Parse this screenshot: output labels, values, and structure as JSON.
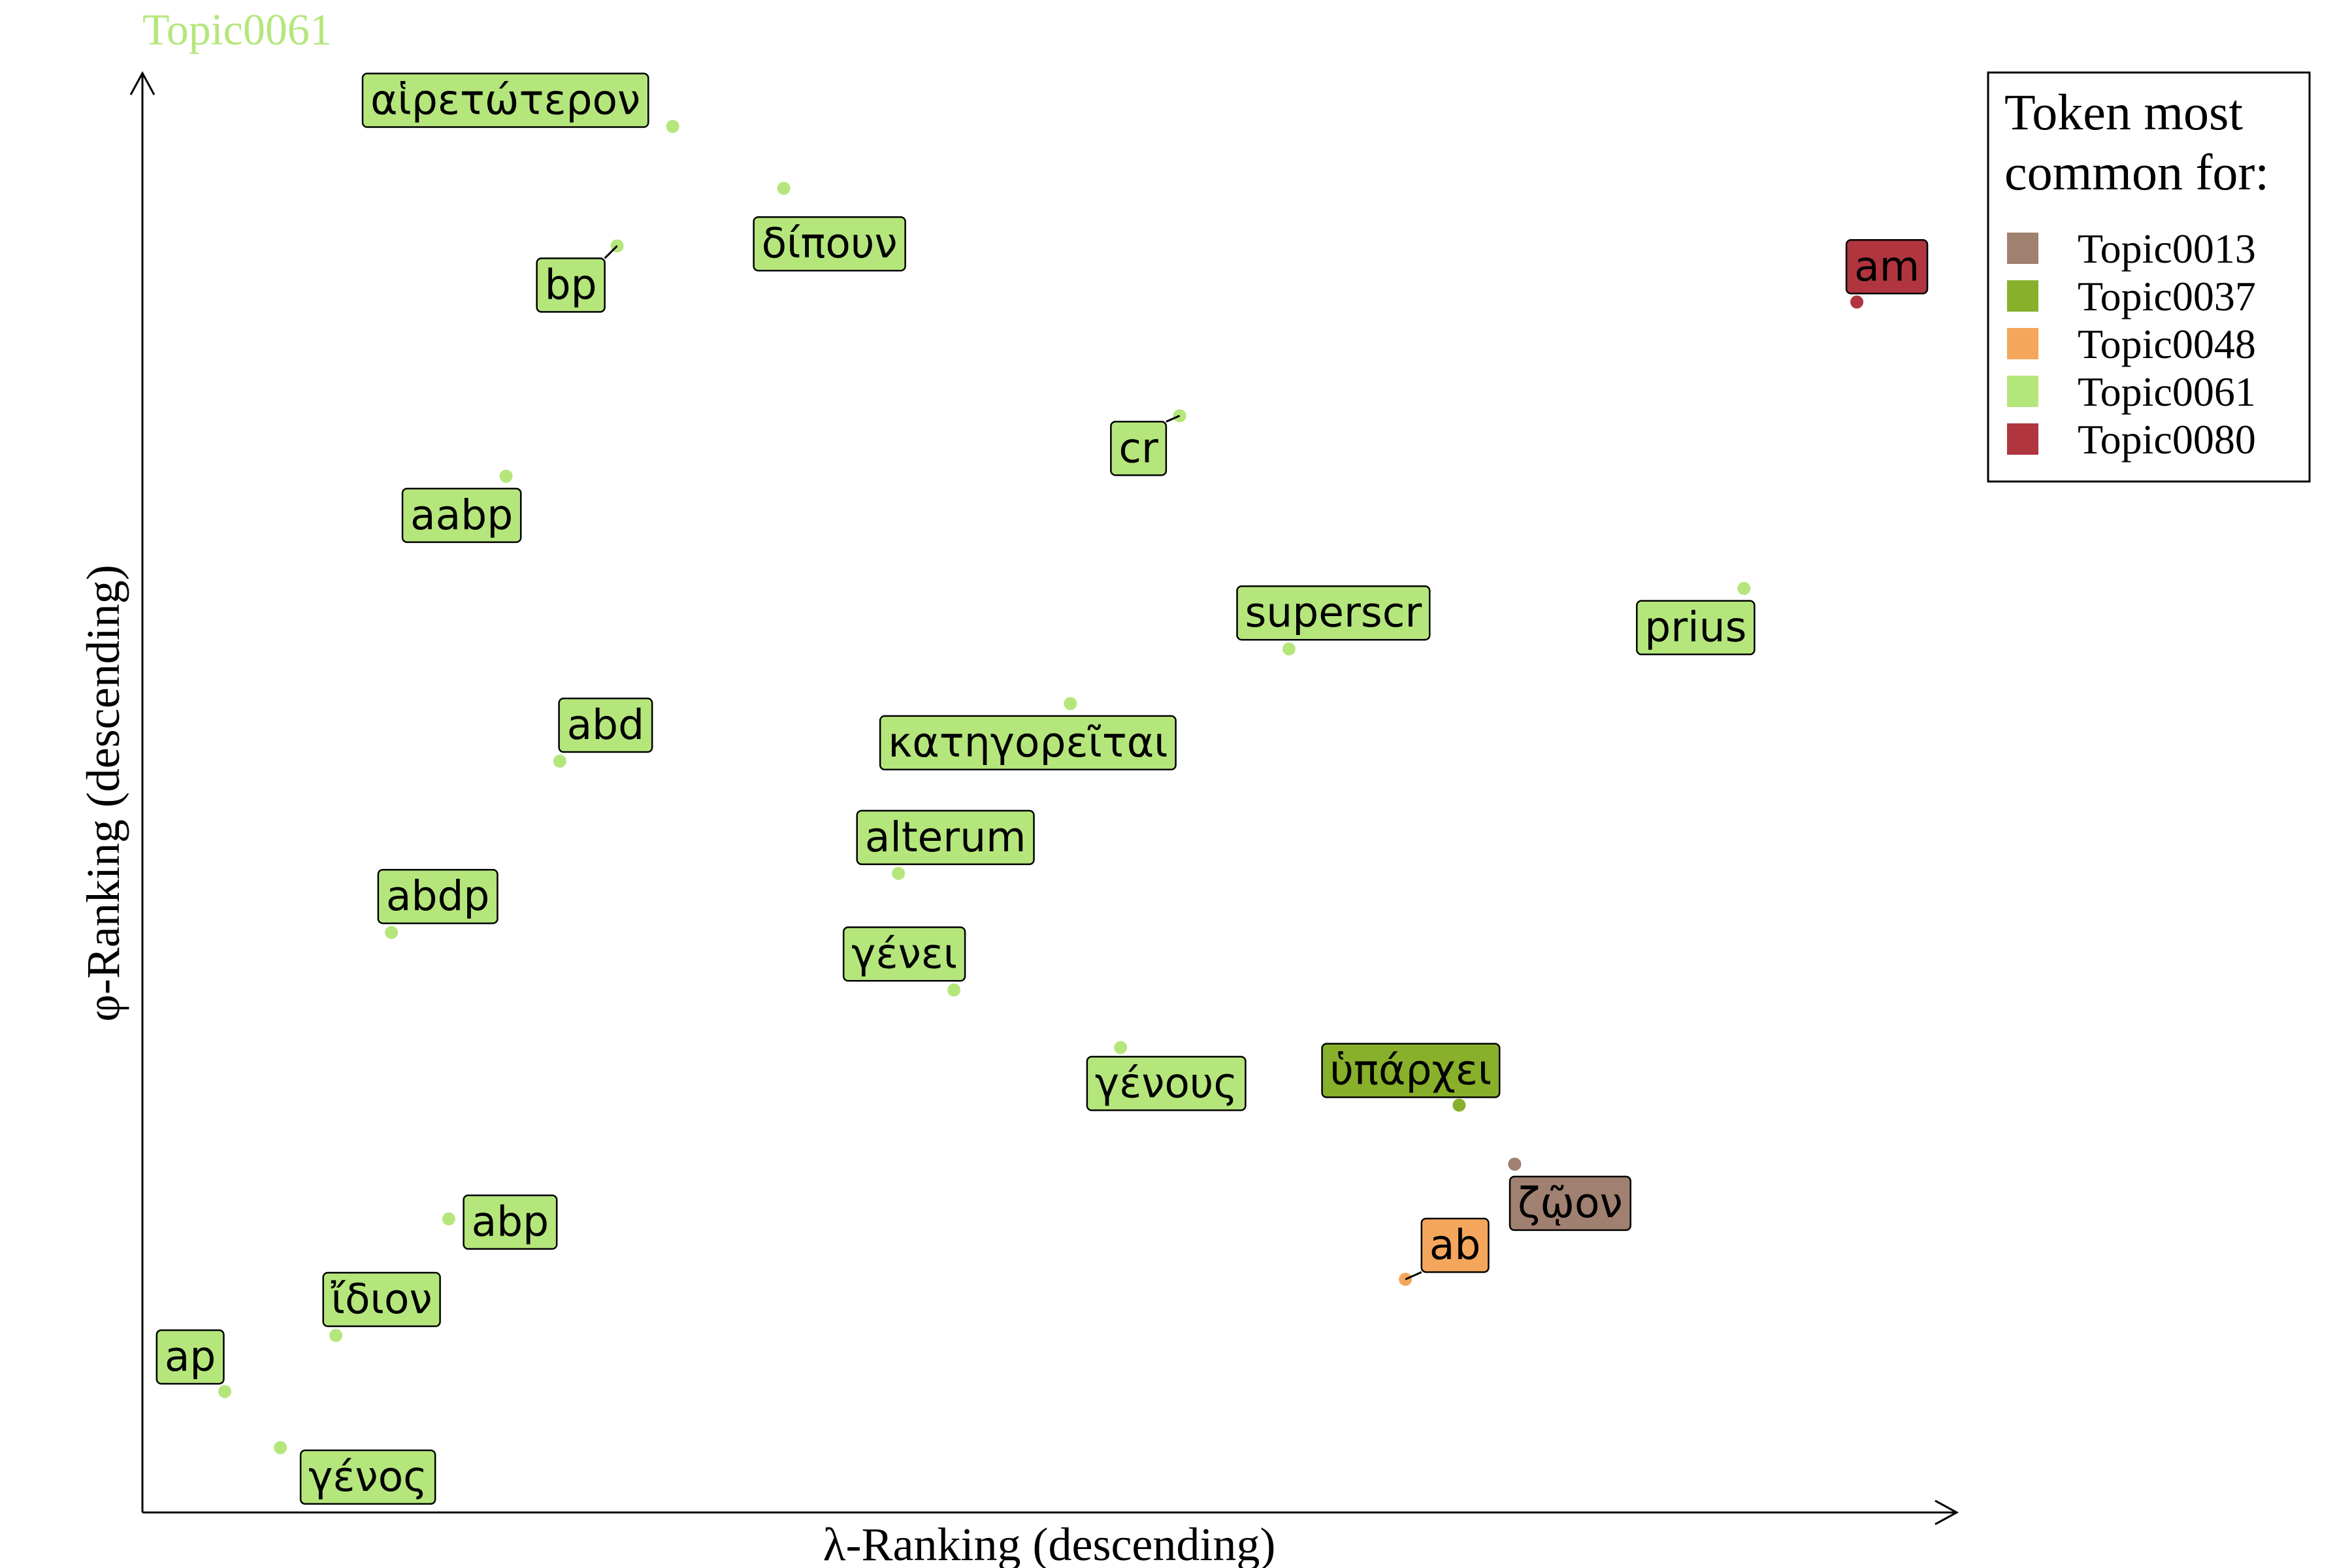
{
  "chart_data": {
    "type": "scatter",
    "title": "Topic0061",
    "title_color": "#b5e67c",
    "xlabel": "λ-Ranking (descending)",
    "ylabel": "φ-Ranking (descending)",
    "xlim": [
      0,
      1
    ],
    "ylim": [
      0,
      1
    ],
    "grid": false,
    "legend_position": "top-right",
    "legend": {
      "title_lines": [
        "Token most",
        "common for:"
      ],
      "entries": [
        {
          "name": "Topic0013",
          "color": "#a08070"
        },
        {
          "name": "Topic0037",
          "color": "#88b02b"
        },
        {
          "name": "Topic0048",
          "color": "#f4a75c"
        },
        {
          "name": "Topic0061",
          "color": "#b5e67c"
        },
        {
          "name": "Topic0080",
          "color": "#b0353f"
        }
      ]
    },
    "points": [
      {
        "token": "αἱρετώτερον",
        "topic": "Topic0061",
        "x": 0.296,
        "y": 0.963
      },
      {
        "token": "δίπουν",
        "topic": "Topic0061",
        "x": 0.358,
        "y": 0.92
      },
      {
        "token": "bp",
        "topic": "Topic0061",
        "x": 0.265,
        "y": 0.88
      },
      {
        "token": "am",
        "topic": "Topic0080",
        "x": 0.957,
        "y": 0.841
      },
      {
        "token": "cr",
        "topic": "Topic0061",
        "x": 0.579,
        "y": 0.762
      },
      {
        "token": "aabp",
        "topic": "Topic0061",
        "x": 0.203,
        "y": 0.72
      },
      {
        "token": "superscr",
        "topic": "Topic0061",
        "x": 0.64,
        "y": 0.6
      },
      {
        "token": "prius",
        "topic": "Topic0061",
        "x": 0.894,
        "y": 0.642
      },
      {
        "token": "κατηγορεῖται",
        "topic": "Topic0061",
        "x": 0.518,
        "y": 0.562
      },
      {
        "token": "abd",
        "topic": "Topic0061",
        "x": 0.233,
        "y": 0.522
      },
      {
        "token": "alterum",
        "topic": "Topic0061",
        "x": 0.422,
        "y": 0.444
      },
      {
        "token": "abdp",
        "topic": "Topic0061",
        "x": 0.139,
        "y": 0.403
      },
      {
        "token": "γένει",
        "topic": "Topic0061",
        "x": 0.453,
        "y": 0.363
      },
      {
        "token": "γένους",
        "topic": "Topic0061",
        "x": 0.546,
        "y": 0.323
      },
      {
        "token": "ὑπάρχει",
        "topic": "Topic0037",
        "x": 0.735,
        "y": 0.283
      },
      {
        "token": "ζῷον",
        "topic": "Topic0013",
        "x": 0.766,
        "y": 0.242
      },
      {
        "token": "abp",
        "topic": "Topic0061",
        "x": 0.171,
        "y": 0.204
      },
      {
        "token": "ab",
        "topic": "Topic0048",
        "x": 0.705,
        "y": 0.162
      },
      {
        "token": "ἴδιον",
        "topic": "Topic0061",
        "x": 0.108,
        "y": 0.123
      },
      {
        "token": "ap",
        "topic": "Topic0061",
        "x": 0.046,
        "y": 0.084
      },
      {
        "token": "γένος",
        "topic": "Topic0061",
        "x": 0.077,
        "y": 0.045
      }
    ]
  }
}
